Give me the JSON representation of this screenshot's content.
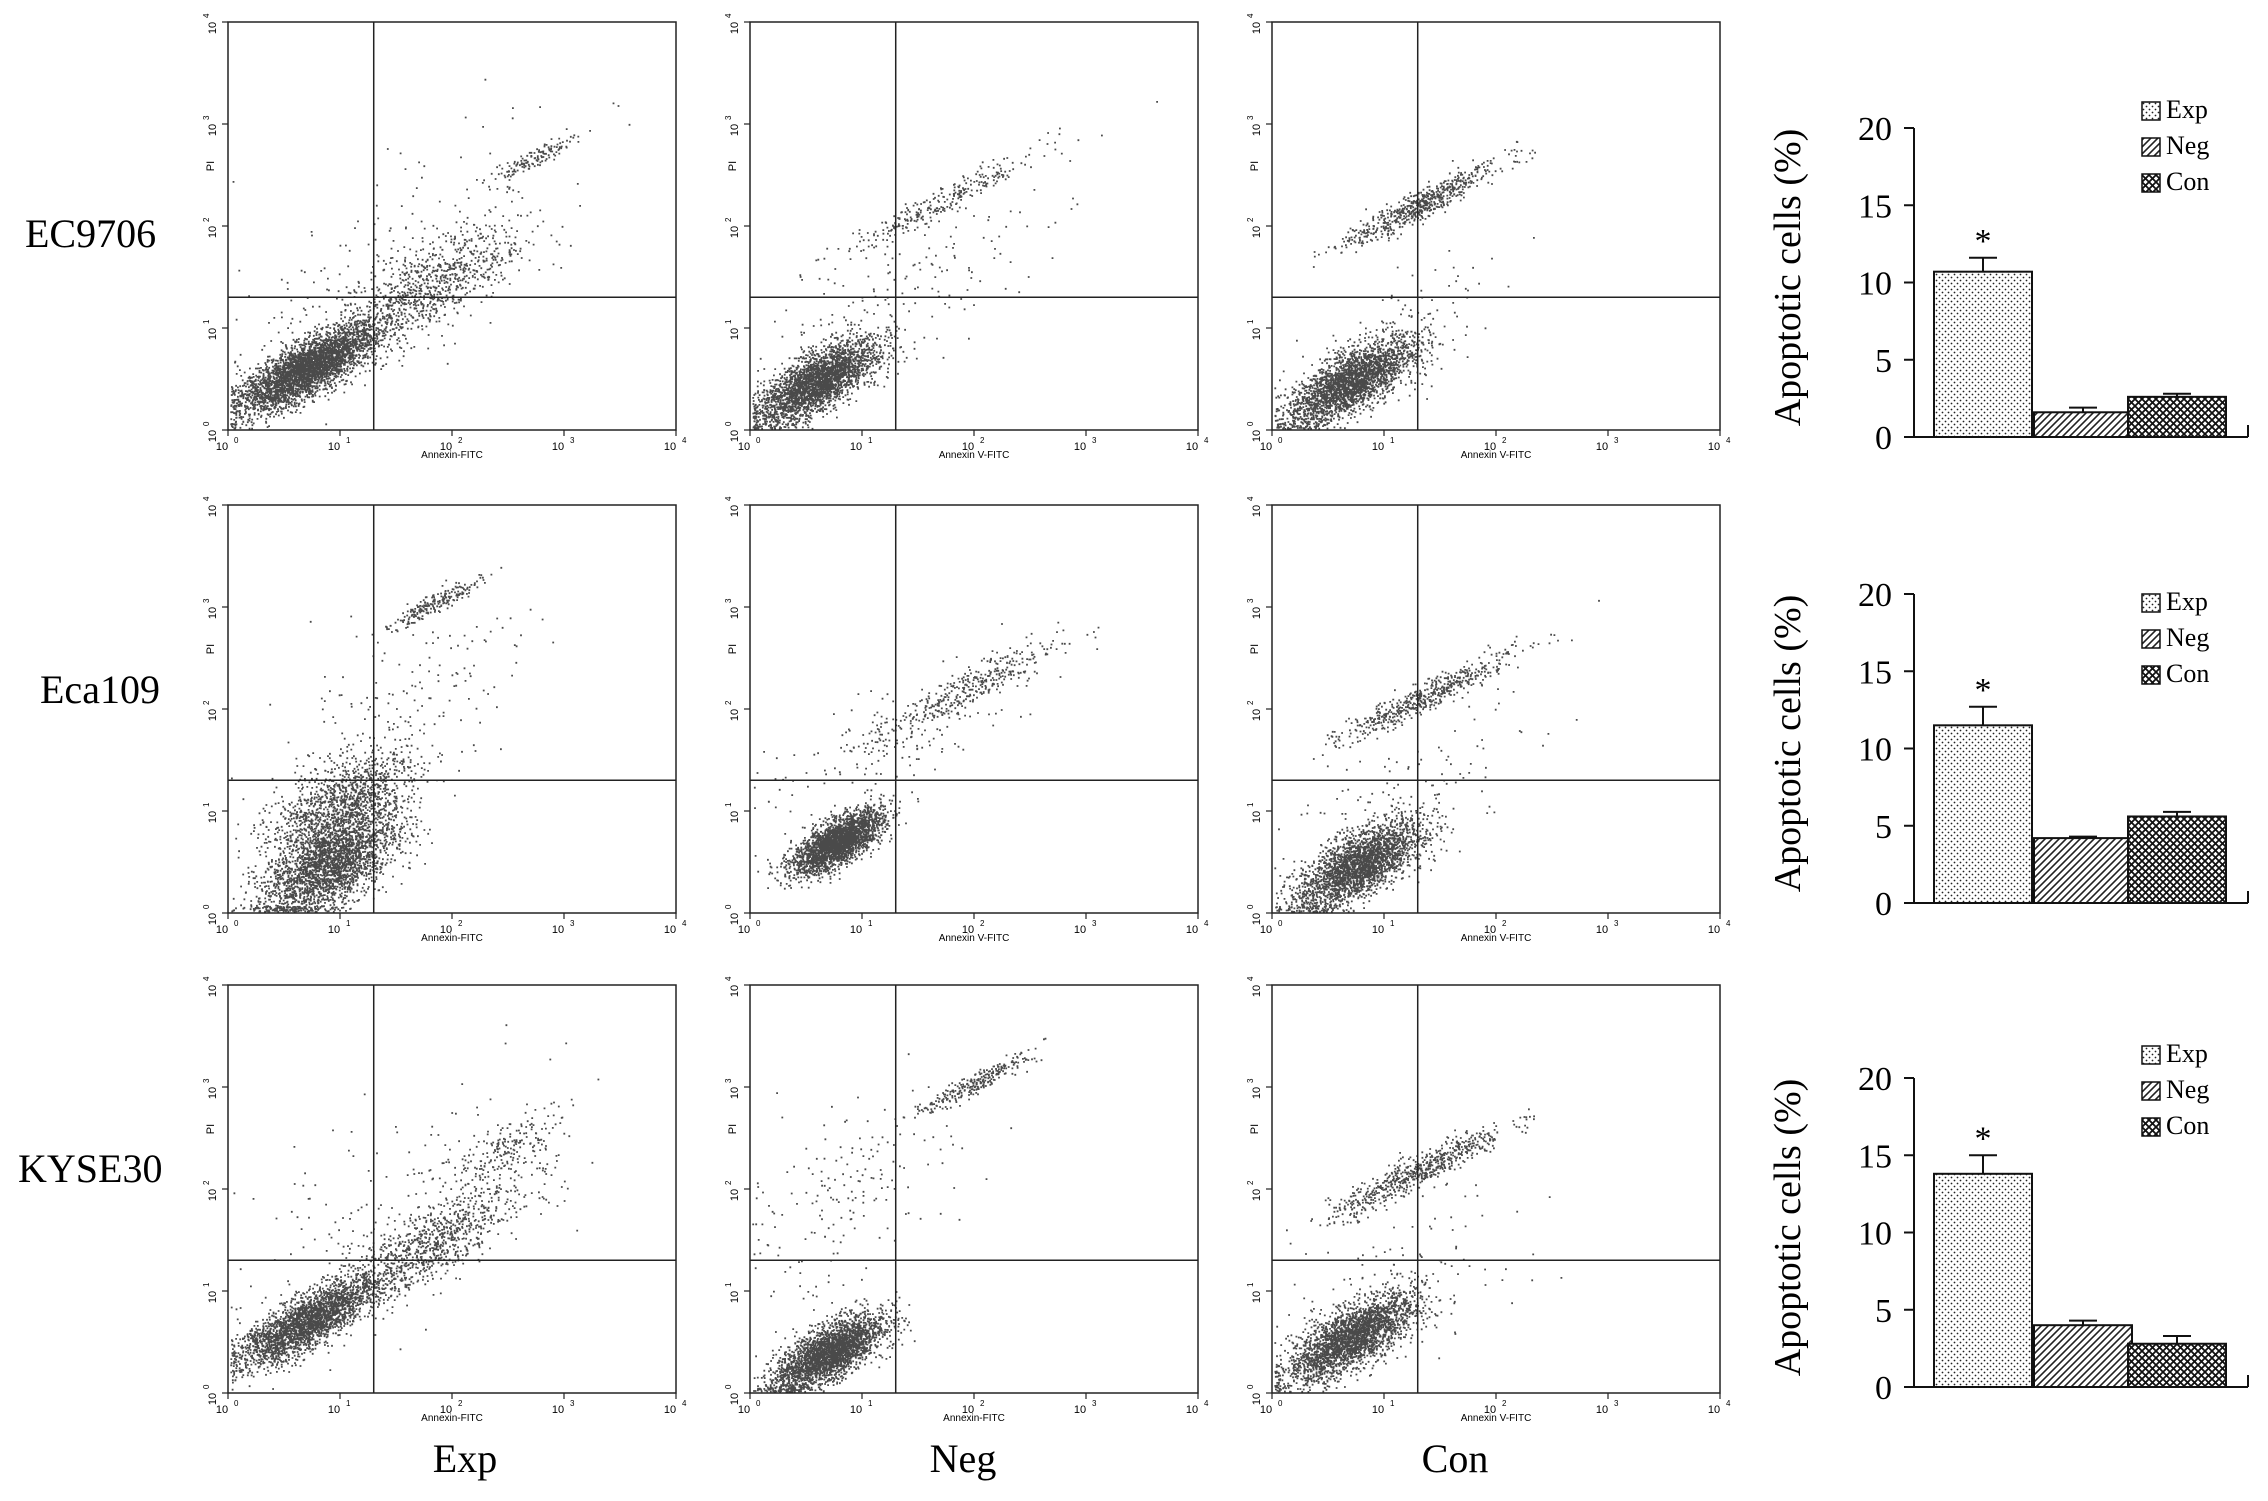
{
  "row_labels": [
    "EC9706",
    "Eca109",
    "KYSE30"
  ],
  "column_labels": [
    "Exp",
    "Neg",
    "Con"
  ],
  "flow_axes": {
    "y_label": "PI",
    "x_tick_labels": [
      "10",
      "10",
      "10",
      "10",
      "10"
    ],
    "x_tick_exponents": [
      "0",
      "1",
      "2",
      "3",
      "4"
    ],
    "y_tick_labels": [
      "10",
      "10",
      "10",
      "10",
      "10"
    ],
    "y_tick_exponents": [
      "0",
      "1",
      "2",
      "3",
      "4"
    ],
    "x_labels": [
      [
        "Annexin-FITC",
        "Annexin V-FITC",
        "Annexin V-FITC"
      ],
      [
        "Annexin-FITC",
        "Annexin V-FITC",
        "Annexin V-FITC"
      ],
      [
        "Annexin-FITC",
        "Annexin-FITC",
        "Annexin V-FITC"
      ]
    ]
  },
  "scatter_style": {
    "point_color": "#4a4a4a",
    "gate_color": "#222222"
  },
  "bar_style": {
    "pattern_exp": "dots",
    "pattern_neg": "diagonal",
    "pattern_con": "crosshatch"
  },
  "chart_data": [
    {
      "type": "bar",
      "row": "EC9706",
      "categories": [
        "Exp",
        "Neg",
        "Con"
      ],
      "values": [
        10.7,
        1.6,
        2.6
      ],
      "errors": [
        0.9,
        0.3,
        0.2
      ],
      "significance": [
        "*",
        "",
        ""
      ],
      "ylabel": "Apoptotic cells (%)",
      "ylim": [
        0,
        20
      ],
      "yticks": [
        0,
        5,
        10,
        15,
        20
      ],
      "legend": [
        "Exp",
        "Neg",
        "Con"
      ],
      "legend_position": "top-right"
    },
    {
      "type": "bar",
      "row": "Eca109",
      "categories": [
        "Exp",
        "Neg",
        "Con"
      ],
      "values": [
        11.5,
        4.2,
        5.6
      ],
      "errors": [
        1.2,
        0.1,
        0.3
      ],
      "significance": [
        "*",
        "",
        ""
      ],
      "ylabel": "Apoptotic cells (%)",
      "ylim": [
        0,
        20
      ],
      "yticks": [
        0,
        5,
        10,
        15,
        20
      ],
      "legend": [
        "Exp",
        "Neg",
        "Con"
      ],
      "legend_position": "top-right"
    },
    {
      "type": "bar",
      "row": "KYSE30",
      "categories": [
        "Exp",
        "Neg",
        "Con"
      ],
      "values": [
        13.8,
        4.0,
        2.8
      ],
      "errors": [
        1.2,
        0.3,
        0.5
      ],
      "significance": [
        "*",
        "",
        ""
      ],
      "ylabel": "Apoptotic cells (%)",
      "ylim": [
        0,
        20
      ],
      "yticks": [
        0,
        5,
        10,
        15,
        20
      ],
      "legend": [
        "Exp",
        "Neg",
        "Con"
      ],
      "legend_position": "top-right"
    },
    {
      "type": "scatter",
      "row": "EC9706",
      "sample": "Exp",
      "x_scale": "log",
      "y_scale": "log",
      "xlim": [
        1,
        10000
      ],
      "ylim": [
        1,
        10000
      ],
      "gate": {
        "x": 20,
        "y": 20
      },
      "populations": [
        {
          "x_center": 5,
          "y_center": 4,
          "x_spread": 0.3,
          "y_spread": 0.22,
          "count": 3600
        },
        {
          "x_center": 60,
          "y_center": 25,
          "x_spread": 0.42,
          "y_spread": 0.35,
          "count": 900
        },
        {
          "x_center": 500,
          "y_center": 450,
          "x_spread": 0.2,
          "y_spread": 0.08,
          "count": 140
        },
        {
          "x_center": 30,
          "y_center": 40,
          "x_spread": 0.8,
          "y_spread": 0.8,
          "count": 200
        }
      ]
    },
    {
      "type": "scatter",
      "row": "EC9706",
      "sample": "Neg",
      "x_scale": "log",
      "y_scale": "log",
      "xlim": [
        1,
        10000
      ],
      "ylim": [
        1,
        10000
      ],
      "gate": {
        "x": 20,
        "y": 20
      },
      "populations": [
        {
          "x_center": 4,
          "y_center": 3,
          "x_spread": 0.26,
          "y_spread": 0.24,
          "count": 3400
        },
        {
          "x_center": 50,
          "y_center": 170,
          "x_spread": 0.45,
          "y_spread": 0.12,
          "count": 300
        },
        {
          "x_center": 20,
          "y_center": 20,
          "x_spread": 0.7,
          "y_spread": 0.6,
          "count": 150
        }
      ]
    },
    {
      "type": "scatter",
      "row": "EC9706",
      "sample": "Con",
      "x_scale": "log",
      "y_scale": "log",
      "xlim": [
        1,
        10000
      ],
      "ylim": [
        1,
        10000
      ],
      "gate": {
        "x": 20,
        "y": 20
      },
      "populations": [
        {
          "x_center": 5,
          "y_center": 3,
          "x_spread": 0.28,
          "y_spread": 0.24,
          "count": 3200
        },
        {
          "x_center": 20,
          "y_center": 160,
          "x_spread": 0.35,
          "y_spread": 0.12,
          "count": 650
        },
        {
          "x_center": 12,
          "y_center": 8,
          "x_spread": 0.5,
          "y_spread": 0.5,
          "count": 120
        }
      ]
    },
    {
      "type": "scatter",
      "row": "Eca109",
      "sample": "Exp",
      "x_scale": "log",
      "y_scale": "log",
      "xlim": [
        1,
        10000
      ],
      "ylim": [
        1,
        10000
      ],
      "gate": {
        "x": 20,
        "y": 20
      },
      "populations": [
        {
          "x_center": 8,
          "y_center": 3,
          "x_spread": 0.3,
          "y_spread": 0.35,
          "count": 2800
        },
        {
          "x_center": 10,
          "y_center": 12,
          "x_spread": 0.32,
          "y_spread": 0.35,
          "count": 1200
        },
        {
          "x_center": 70,
          "y_center": 1100,
          "x_spread": 0.22,
          "y_spread": 0.08,
          "count": 220
        },
        {
          "x_center": 30,
          "y_center": 100,
          "x_spread": 0.6,
          "y_spread": 0.7,
          "count": 160
        }
      ]
    },
    {
      "type": "scatter",
      "row": "Eca109",
      "sample": "Neg",
      "x_scale": "log",
      "y_scale": "log",
      "xlim": [
        1,
        10000
      ],
      "ylim": [
        1,
        10000
      ],
      "gate": {
        "x": 20,
        "y": 20
      },
      "populations": [
        {
          "x_center": 6,
          "y_center": 5,
          "x_spread": 0.2,
          "y_spread": 0.18,
          "count": 2600
        },
        {
          "x_center": 80,
          "y_center": 150,
          "x_spread": 0.42,
          "y_spread": 0.18,
          "count": 380
        },
        {
          "x_center": 20,
          "y_center": 50,
          "x_spread": 0.7,
          "y_spread": 0.6,
          "count": 150
        }
      ]
    },
    {
      "type": "scatter",
      "row": "Eca109",
      "sample": "Con",
      "x_scale": "log",
      "y_scale": "log",
      "xlim": [
        1,
        10000
      ],
      "ylim": [
        1,
        10000
      ],
      "gate": {
        "x": 20,
        "y": 20
      },
      "populations": [
        {
          "x_center": 6,
          "y_center": 3,
          "x_spread": 0.28,
          "y_spread": 0.26,
          "count": 3200
        },
        {
          "x_center": 25,
          "y_center": 140,
          "x_spread": 0.4,
          "y_spread": 0.12,
          "count": 550
        },
        {
          "x_center": 15,
          "y_center": 15,
          "x_spread": 0.55,
          "y_spread": 0.55,
          "count": 120
        }
      ]
    },
    {
      "type": "scatter",
      "row": "KYSE30",
      "sample": "Exp",
      "x_scale": "log",
      "y_scale": "log",
      "xlim": [
        1,
        10000
      ],
      "ylim": [
        1,
        10000
      ],
      "gate": {
        "x": 20,
        "y": 20
      },
      "populations": [
        {
          "x_center": 5,
          "y_center": 5,
          "x_spread": 0.3,
          "y_spread": 0.22,
          "count": 3600
        },
        {
          "x_center": 60,
          "y_center": 28,
          "x_spread": 0.42,
          "y_spread": 0.3,
          "count": 900
        },
        {
          "x_center": 300,
          "y_center": 250,
          "x_spread": 0.25,
          "y_spread": 0.25,
          "count": 200
        },
        {
          "x_center": 30,
          "y_center": 60,
          "x_spread": 0.8,
          "y_spread": 0.8,
          "count": 200
        }
      ]
    },
    {
      "type": "scatter",
      "row": "KYSE30",
      "sample": "Neg",
      "x_scale": "log",
      "y_scale": "log",
      "xlim": [
        1,
        10000
      ],
      "ylim": [
        1,
        10000
      ],
      "gate": {
        "x": 20,
        "y": 20
      },
      "populations": [
        {
          "x_center": 5,
          "y_center": 2.5,
          "x_spread": 0.24,
          "y_spread": 0.22,
          "count": 3600
        },
        {
          "x_center": 100,
          "y_center": 1100,
          "x_spread": 0.25,
          "y_spread": 0.08,
          "count": 260
        },
        {
          "x_center": 8,
          "y_center": 100,
          "x_spread": 0.5,
          "y_spread": 0.7,
          "count": 180
        }
      ]
    },
    {
      "type": "scatter",
      "row": "KYSE30",
      "sample": "Con",
      "x_scale": "log",
      "y_scale": "log",
      "xlim": [
        1,
        10000
      ],
      "ylim": [
        1,
        10000
      ],
      "gate": {
        "x": 20,
        "y": 20
      },
      "populations": [
        {
          "x_center": 5,
          "y_center": 3.5,
          "x_spread": 0.28,
          "y_spread": 0.25,
          "count": 3200
        },
        {
          "x_center": 20,
          "y_center": 150,
          "x_spread": 0.4,
          "y_spread": 0.14,
          "count": 650
        },
        {
          "x_center": 12,
          "y_center": 10,
          "x_spread": 0.55,
          "y_spread": 0.55,
          "count": 120
        }
      ]
    }
  ]
}
